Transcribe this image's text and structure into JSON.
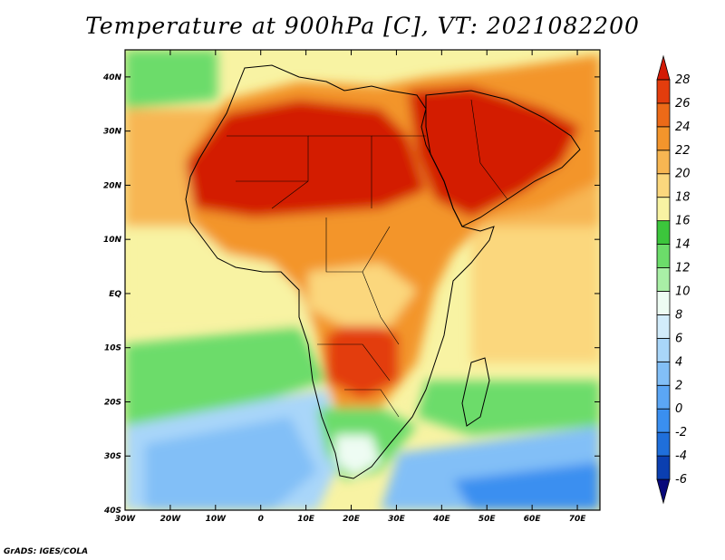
{
  "title": "Temperature at 900hPa [C], VT: 2021082200",
  "footer": "GrADS: IGES/COLA",
  "map": {
    "lon_range": [
      -30,
      75
    ],
    "lat_range": [
      -40,
      45
    ],
    "lon_ticks": [
      {
        "value": -30,
        "label": "30W"
      },
      {
        "value": -20,
        "label": "20W"
      },
      {
        "value": -10,
        "label": "10W"
      },
      {
        "value": 0,
        "label": "0"
      },
      {
        "value": 10,
        "label": "10E"
      },
      {
        "value": 20,
        "label": "20E"
      },
      {
        "value": 30,
        "label": "30E"
      },
      {
        "value": 40,
        "label": "40E"
      },
      {
        "value": 50,
        "label": "50E"
      },
      {
        "value": 60,
        "label": "60E"
      },
      {
        "value": 70,
        "label": "70E"
      }
    ],
    "lat_ticks": [
      {
        "value": 40,
        "label": "40N"
      },
      {
        "value": 30,
        "label": "30N"
      },
      {
        "value": 20,
        "label": "20N"
      },
      {
        "value": 10,
        "label": "10N"
      },
      {
        "value": 0,
        "label": "EQ"
      },
      {
        "value": -10,
        "label": "10S"
      },
      {
        "value": -20,
        "label": "20S"
      },
      {
        "value": -30,
        "label": "30S"
      },
      {
        "value": -40,
        "label": "40S"
      }
    ],
    "field_name": "temperature-900hpa"
  },
  "colorbar": {
    "bins": [
      {
        "color": "#08087a"
      },
      {
        "color": "#0b3fb0"
      },
      {
        "color": "#1f6fdb"
      },
      {
        "color": "#3a8ff0"
      },
      {
        "color": "#5ba6f5"
      },
      {
        "color": "#82bff7"
      },
      {
        "color": "#a9d6f9"
      },
      {
        "color": "#d2ecfb"
      },
      {
        "color": "#eefcf3"
      },
      {
        "color": "#a9efa6"
      },
      {
        "color": "#6cdc6a"
      },
      {
        "color": "#3cc63c"
      },
      {
        "color": "#f8f3a3"
      },
      {
        "color": "#fbd77d"
      },
      {
        "color": "#f7b652"
      },
      {
        "color": "#f3952c"
      },
      {
        "color": "#ec6a18"
      },
      {
        "color": "#e33d0d"
      },
      {
        "color": "#d31a06"
      }
    ],
    "labels": [
      "-6",
      "-4",
      "-2",
      "0",
      "2",
      "4",
      "6",
      "8",
      "10",
      "12",
      "14",
      "16",
      "18",
      "20",
      "22",
      "24",
      "26",
      "28"
    ]
  }
}
